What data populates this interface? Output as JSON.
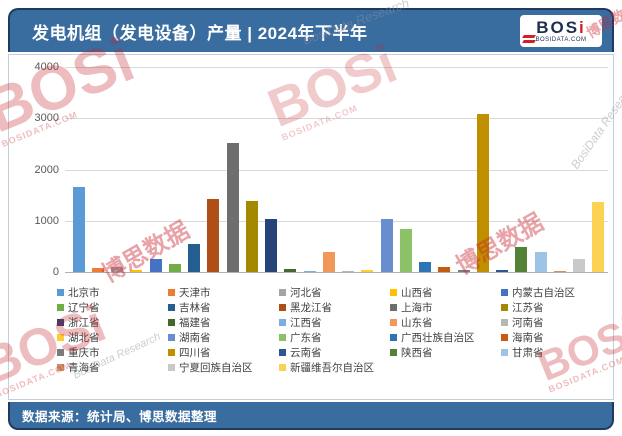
{
  "header": {
    "title": "发电机组（发电设备）产量 | 2024年下半年",
    "logo": {
      "brand": "BOS",
      "brand_i": "i",
      "domain": "BOSIDATA.COM"
    }
  },
  "footer": {
    "source": "数据来源：统计局、博思数据整理"
  },
  "watermarks": {
    "brand": "BOSi",
    "brand_cn": "博思数据",
    "research": "BosiData Research",
    "domain": "BOSIDATA.COM"
  },
  "chart_data": {
    "type": "bar",
    "title": "发电机组（发电设备）产量 | 2024年下半年",
    "xlabel": "",
    "ylabel": "",
    "ylim": [
      0,
      4000
    ],
    "yticks": [
      0,
      1000,
      2000,
      3000,
      4000
    ],
    "grid": true,
    "legend_position": "bottom",
    "categories": [
      "北京市",
      "天津市",
      "河北省",
      "山西省",
      "内蒙古自治区",
      "辽宁省",
      "吉林省",
      "黑龙江省",
      "上海市",
      "江苏省",
      "浙江省",
      "福建省",
      "江西省",
      "山东省",
      "河南省",
      "湖北省",
      "湖南省",
      "广东省",
      "广西壮族自治区",
      "海南省",
      "重庆市",
      "四川省",
      "云南省",
      "陕西省",
      "甘肃省",
      "青海省",
      "宁夏回族自治区",
      "新疆维吾尔自治区"
    ],
    "values": [
      1650,
      80,
      100,
      30,
      250,
      160,
      540,
      1430,
      2520,
      1390,
      1030,
      50,
      20,
      390,
      15,
      30,
      1040,
      830,
      195,
      90,
      30,
      3080,
      45,
      480,
      385,
      25,
      250,
      1360
    ],
    "colors": [
      "#5B9BD5",
      "#ED7D31",
      "#A5A5A5",
      "#FFC000",
      "#4472C4",
      "#70AD47",
      "#255E91",
      "#B04F15",
      "#6E6E6E",
      "#A38800",
      "#264478",
      "#43682B",
      "#7CAFDD",
      "#F1975A",
      "#B7B7B7",
      "#FFCD33",
      "#698ED0",
      "#8CC168",
      "#2E75B6",
      "#C55A11",
      "#7B7B7B",
      "#BF8F00",
      "#2F5496",
      "#538135",
      "#9DC3E6",
      "#CC8D67",
      "#C9C9C9",
      "#FBD254"
    ]
  }
}
